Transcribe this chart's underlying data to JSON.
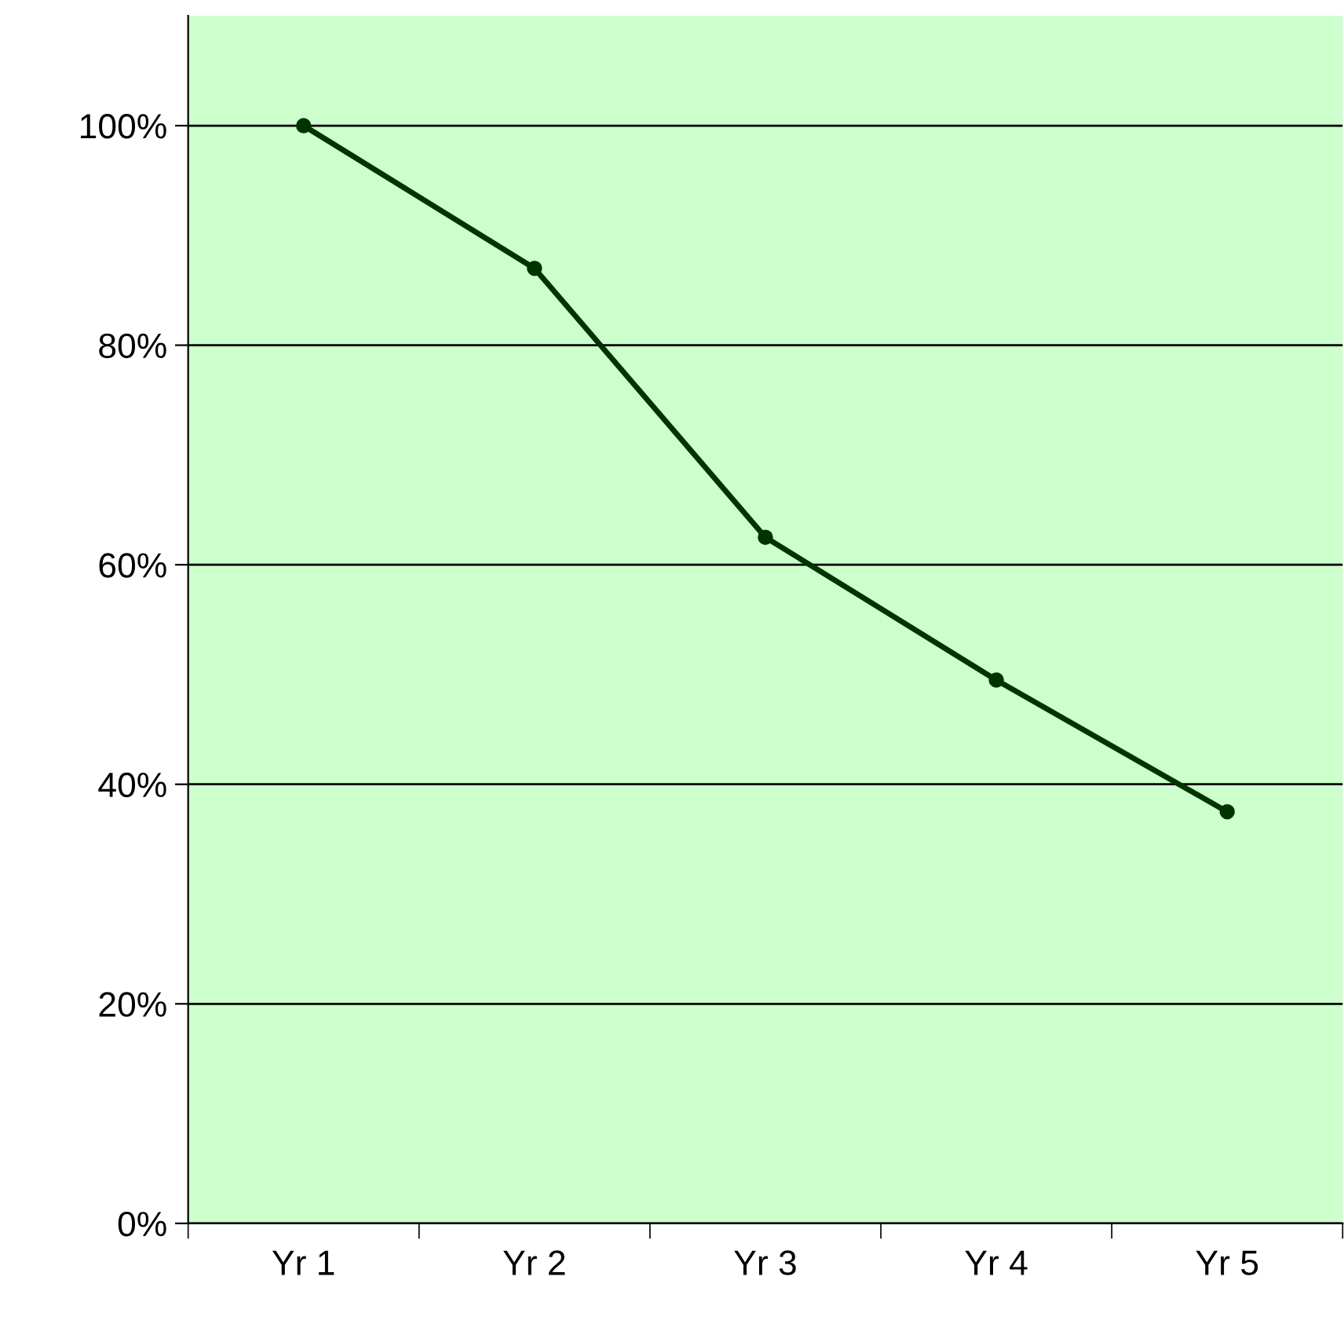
{
  "chart_data": {
    "type": "line",
    "categories": [
      "Yr 1",
      "Yr 2",
      "Yr 3",
      "Yr 4",
      "Yr 5"
    ],
    "series": [
      {
        "color": "#003300",
        "values": [
          100,
          87,
          62.5,
          49.5,
          37.5
        ]
      }
    ],
    "ylim": [
      0,
      110
    ],
    "yticks": [
      {
        "value": 0,
        "label": "0%"
      },
      {
        "value": 20,
        "label": "20%"
      },
      {
        "value": 40,
        "label": "40%"
      },
      {
        "value": 60,
        "label": "60%"
      },
      {
        "value": 80,
        "label": "80%"
      },
      {
        "value": 100,
        "label": "100%"
      }
    ],
    "grid": "y",
    "marker": "circle",
    "line_style": "solid"
  }
}
